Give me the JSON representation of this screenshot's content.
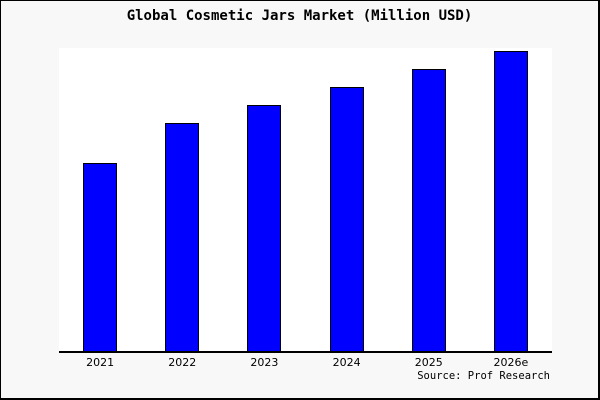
{
  "chart_data": {
    "type": "bar",
    "title": "Global Cosmetic Jars Market (Million USD)",
    "categories": [
      "2021",
      "2022",
      "2023",
      "2024",
      "2025",
      "2026e"
    ],
    "values": [
      63,
      76,
      82,
      88,
      94,
      100
    ],
    "values_note": "relative scale estimated from bar heights; no y-axis values shown (2026e = 100)",
    "xlabel": "",
    "ylabel": "",
    "ylim": [
      0,
      101
    ],
    "grid": false,
    "legend": false,
    "source": "Source: Prof Research",
    "colors": {
      "bar_fill": "#0000ff",
      "bar_border": "#000000",
      "axis": "#000000",
      "figure_background": "#f8f8f8",
      "plot_background": "#ffffff",
      "text": "#000000",
      "frame_border": "#000000"
    }
  }
}
